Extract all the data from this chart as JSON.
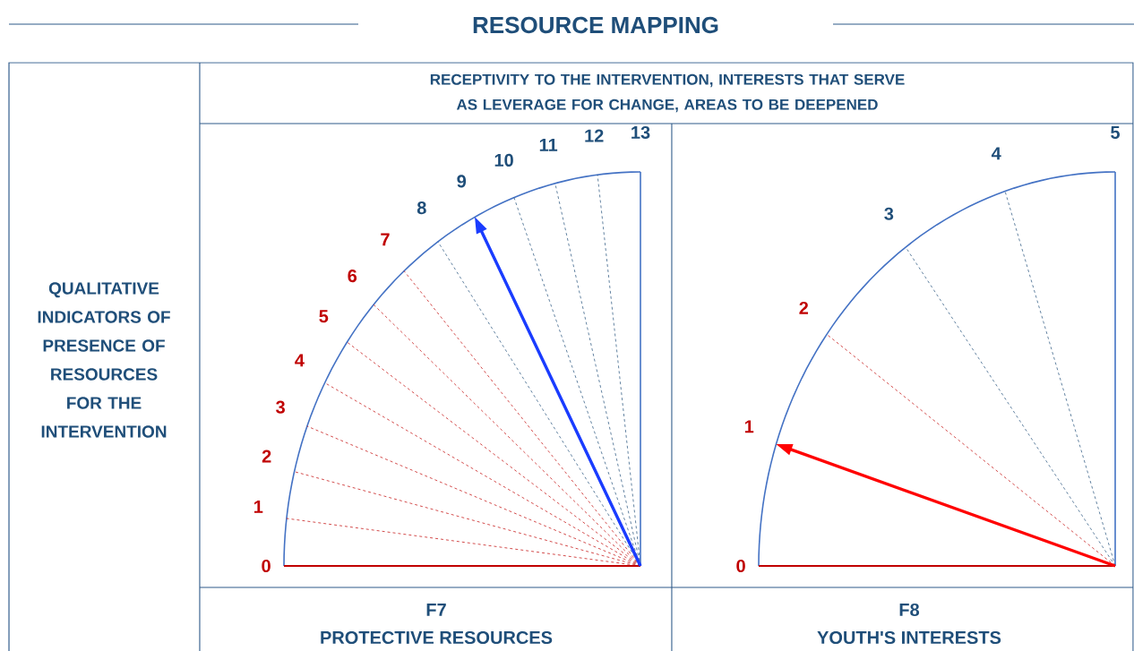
{
  "chart_data": [
    {
      "type": "other",
      "title": "RESOURCE MAPPING",
      "subtitle": "RECEPTIVITY TO THE INTERVENTION, INTERESTS THAT SERVE AS LEVERAGE FOR CHANGE, AREAS TO BE DEEPENED",
      "ylabel": "QUALITATIVE INDICATORS OF PRESENCE OF RESOURCES FOR THE INTERVENTION",
      "xlabel": "F7",
      "annotations": [
        "PROTECTIVE RESOURCES"
      ],
      "categories": [
        "0",
        "1",
        "2",
        "3",
        "4",
        "5",
        "6",
        "7",
        "8",
        null,
        "10",
        "11",
        "12",
        "13"
      ],
      "values": [
        null,
        null,
        null,
        null,
        null,
        null,
        null,
        null,
        null,
        9,
        null,
        null,
        null,
        null
      ],
      "value_labels": [
        null,
        null,
        null,
        null,
        null,
        null,
        null,
        null,
        null,
        "9",
        null,
        null,
        null,
        null
      ],
      "colors": [
        "#c00000",
        "#c00000",
        "#c00000",
        "#c00000",
        "#c00000",
        "#c00000",
        "#c00000",
        "#c00000",
        "#1f4e79",
        "#1f4e79",
        "#1f4e79",
        "#1f4e79",
        "#1f4e79",
        "#1f4e79"
      ],
      "color": "#1a3cff"
    },
    {
      "type": "other",
      "xlabel": "F8",
      "annotations": [
        "YOUTH'S INTERESTS"
      ],
      "categories": [
        "0",
        null,
        "2",
        "3",
        "4",
        "5"
      ],
      "values": [
        null,
        1,
        null,
        null,
        null,
        null
      ],
      "value_labels": [
        null,
        "1",
        null,
        null,
        null,
        null
      ],
      "colors": [
        "#c00000",
        "#c00000",
        "#c00000",
        "#1f4e79",
        "#1f4e79",
        "#1f4e79"
      ],
      "color": "#ff0000"
    }
  ]
}
